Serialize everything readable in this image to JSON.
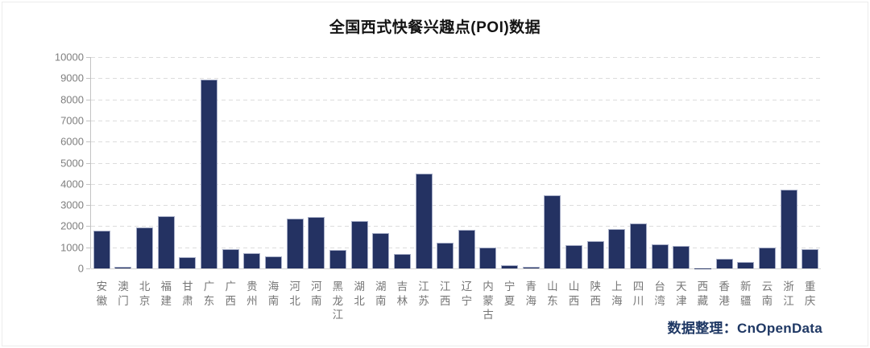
{
  "page": {
    "title": "全国西式快餐兴趣点(POI)数据"
  },
  "chart_data": {
    "type": "bar",
    "title": "全国西式快餐兴趣点(POI)数据",
    "categories": [
      "安徽",
      "澳门",
      "北京",
      "福建",
      "甘肃",
      "广东",
      "广西",
      "贵州",
      "海南",
      "河北",
      "河南",
      "黑龙江",
      "湖北",
      "湖南",
      "吉林",
      "江苏",
      "江西",
      "辽宁",
      "内蒙古",
      "宁夏",
      "青海",
      "山东",
      "山西",
      "陕西",
      "上海",
      "四川",
      "台湾",
      "天津",
      "西藏",
      "香港",
      "新疆",
      "云南",
      "浙江",
      "重庆"
    ],
    "values": [
      1800,
      75,
      1950,
      2480,
      550,
      8950,
      910,
      720,
      570,
      2350,
      2420,
      890,
      2240,
      1670,
      700,
      4490,
      1200,
      1830,
      990,
      150,
      90,
      3460,
      1100,
      1280,
      1870,
      2130,
      1160,
      1050,
      10,
      450,
      290,
      980,
      3730,
      910
    ],
    "xlabel": "",
    "ylabel": "",
    "ylim": [
      0,
      10000
    ],
    "yticks": [
      0,
      1000,
      2000,
      3000,
      4000,
      5000,
      6000,
      7000,
      8000,
      9000,
      10000
    ],
    "grid": "horizontal-dashed",
    "legend": "none",
    "bar_color": "#243262",
    "bar_border_color": "#a7aec7",
    "axis_color": "#c3c3c3",
    "tick_label_color": "#7f7f7f",
    "source_credit": "数据整理：CnOpenData"
  }
}
